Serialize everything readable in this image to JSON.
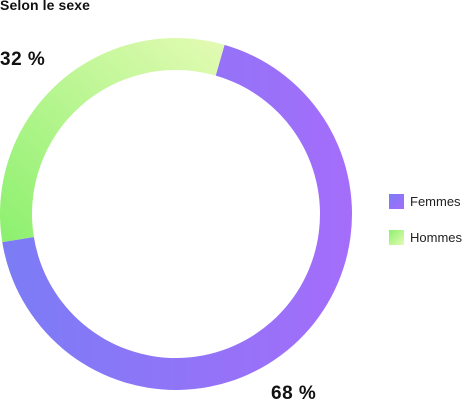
{
  "chart_data": {
    "type": "pie",
    "variant": "donut",
    "title": "Selon le sexe",
    "categories": [
      "Femmes",
      "Hommes"
    ],
    "values": [
      68,
      32
    ],
    "value_labels": [
      "68 %",
      "32 %"
    ],
    "colors": {
      "Femmes": [
        "#7b7cf5",
        "#a46dfa"
      ],
      "Hommes": [
        "#8cf06e",
        "#e4fbb4"
      ]
    },
    "legend": "right"
  }
}
